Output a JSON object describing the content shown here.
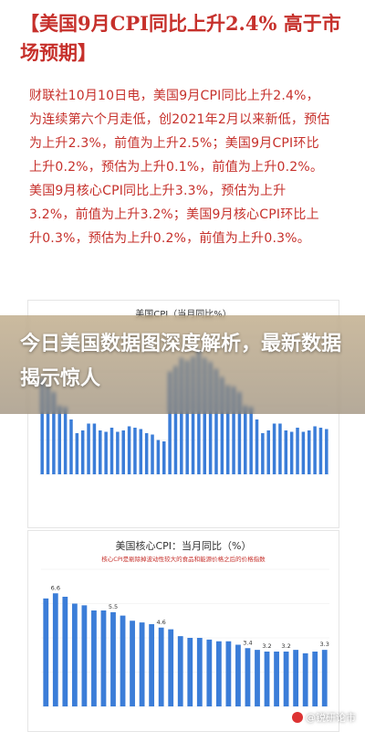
{
  "article": {
    "headline_prefix": "【",
    "headline_text": "美国9月CPI同比上升2.4% 高于市场预期",
    "headline_suffix": "】",
    "body": "财联社10月10日电，美国9月CPI同比上升2.4%，为连续第六个月走低，创2021年2月以来新低，预估为上升2.3%，前值为上升2.5%；美国9月CPI环比上升0.2%，预估为上升0.1%，前值为上升0.2%。美国9月核心CPI同比上升3.3%，预估为上升3.2%，前值为上升3.2%；美国9月核心CPI环比上升0.3%，预估为上升0.2%，前值为上升0.3%。"
  },
  "overlay": {
    "title": "今日美国数据图深度解析，最新数据揭示惊人"
  },
  "watermark": {
    "text": "@锐研论市"
  },
  "colors": {
    "headline": "#c6302b",
    "bar": "#3b7dd8",
    "bar_highlight": "#4a90e2"
  },
  "chart_data": [
    {
      "type": "bar",
      "title": "美国CPI（当月同比%）",
      "values": [
        7.0,
        6.4,
        6.0,
        5.0,
        4.9,
        4.0,
        3.0,
        3.2,
        3.7,
        3.7,
        3.2,
        3.1,
        3.4,
        3.1,
        3.2,
        3.5,
        3.4,
        3.3,
        3.0,
        2.9,
        2.5,
        2.4,
        7.5,
        7.9,
        8.5,
        8.3,
        8.6,
        9.1,
        8.5,
        8.2,
        7.7,
        7.1,
        6.5,
        6.4,
        6.0,
        5.0,
        4.9,
        4.0,
        3.0,
        3.2,
        3.7,
        3.7,
        3.2,
        3.1,
        3.4,
        3.1,
        3.2,
        3.5,
        3.4,
        3.3
      ],
      "ylim": [
        0,
        10
      ]
    },
    {
      "type": "bar",
      "title": "美国核心CPI：当月同比（%）",
      "subtitle": "核心CPI是剔除掉波动性较大的食品和能源价格之后的价格指数",
      "values": [
        6.3,
        6.6,
        6.4,
        6.0,
        5.9,
        5.6,
        5.6,
        5.5,
        5.3,
        5.0,
        4.9,
        4.8,
        4.6,
        4.5,
        4.1,
        4.0,
        4.0,
        3.9,
        3.8,
        3.8,
        3.6,
        3.4,
        3.3,
        3.2,
        3.2,
        3.2,
        3.3,
        3.1,
        3.2,
        3.3
      ],
      "data_labels": [
        {
          "index": 1,
          "text": "6.6"
        },
        {
          "index": 7,
          "text": "5.5"
        },
        {
          "index": 12,
          "text": "4.6"
        },
        {
          "index": 21,
          "text": "3.4"
        },
        {
          "index": 23,
          "text": "3.2"
        },
        {
          "index": 25,
          "text": "3.2"
        },
        {
          "index": 29,
          "text": "3.3"
        }
      ],
      "ylim": [
        0,
        8
      ]
    }
  ]
}
